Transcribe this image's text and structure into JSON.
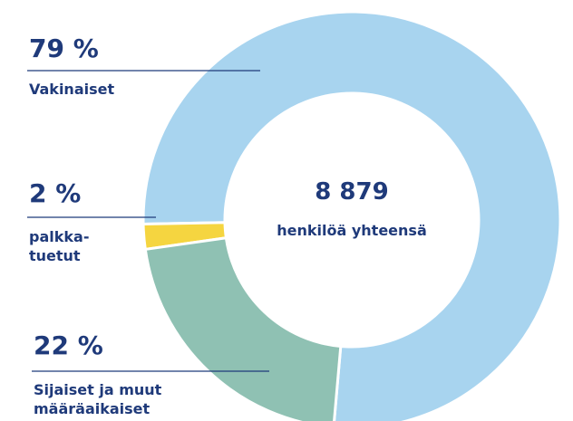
{
  "chart_data": {
    "type": "donut",
    "categories": [
      "Vakinaiset",
      "palkka-\ntuetut",
      "Sijaiset ja muut\nmääräaikaiset"
    ],
    "values": [
      79,
      2,
      22
    ],
    "value_labels": [
      "79 %",
      "2 %",
      "22 %"
    ],
    "colors": [
      "#a8d4ef",
      "#f5d540",
      "#8fc1b3"
    ],
    "center_text": "8 879",
    "center_caption": "henkilöä yhteensä"
  }
}
